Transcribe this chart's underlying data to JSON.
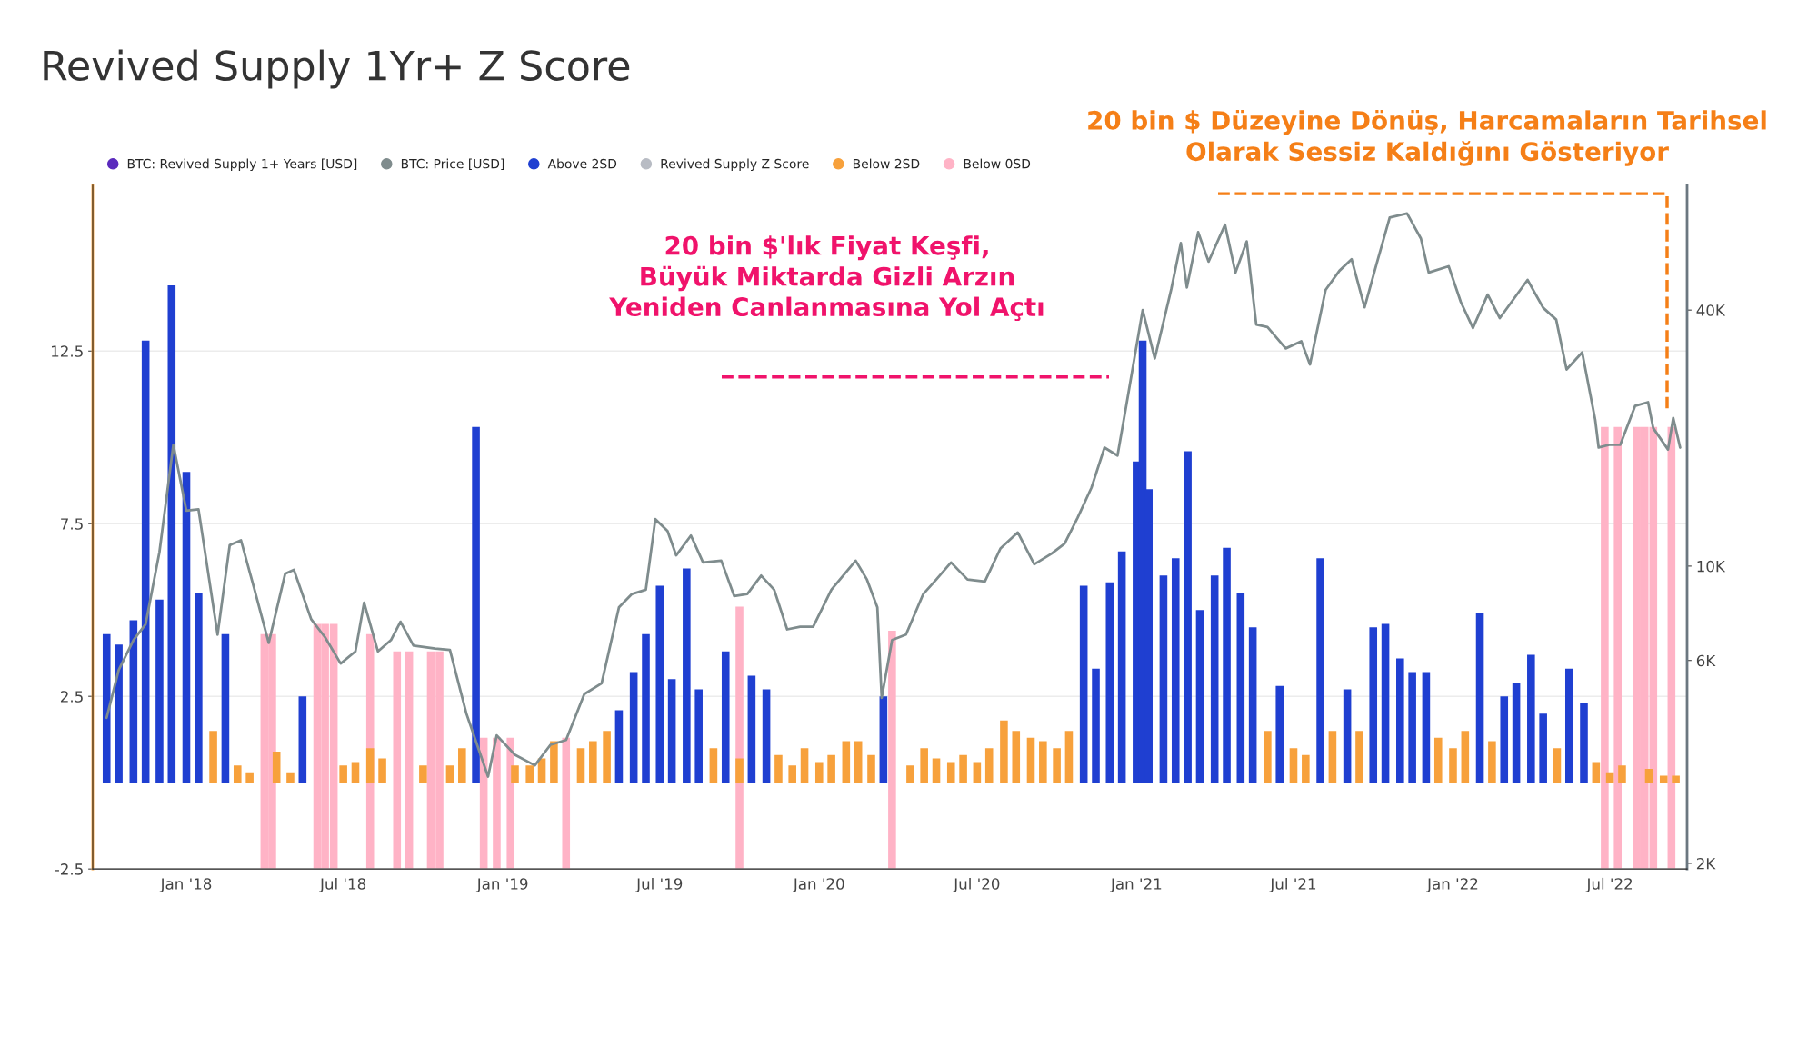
{
  "chart_data": {
    "type": "bar",
    "title": "Revived Supply 1Yr+ Z Score",
    "xlim": [
      "2017-09-15",
      "2022-09-28"
    ],
    "xticks": [
      {
        "value": "2018-01-01",
        "label": "Jan '18"
      },
      {
        "value": "2018-07-01",
        "label": "Jul '18"
      },
      {
        "value": "2019-01-01",
        "label": "Jan '19"
      },
      {
        "value": "2019-07-01",
        "label": "Jul '19"
      },
      {
        "value": "2020-01-01",
        "label": "Jan '20"
      },
      {
        "value": "2020-07-01",
        "label": "Jul '20"
      },
      {
        "value": "2021-01-01",
        "label": "Jan '21"
      },
      {
        "value": "2021-07-01",
        "label": "Jul '21"
      },
      {
        "value": "2022-01-01",
        "label": "Jan '22"
      },
      {
        "value": "2022-07-01",
        "label": "Jul '22"
      }
    ],
    "ylim": [
      -2.5,
      17.3
    ],
    "yticks": [
      -2.5,
      2.5,
      7.5,
      12.5
    ],
    "y2lim": [
      1940,
      78600
    ],
    "y2ticks": [
      {
        "value": 2000,
        "label": "2K"
      },
      {
        "value": 6000,
        "label": "6K"
      },
      {
        "value": 10000,
        "label": "10K"
      },
      {
        "value": 40000,
        "label": "40K"
      }
    ],
    "log": "y2",
    "grid": "y",
    "legend": "top left",
    "series": [
      {
        "name": "BTC: Revived Supply 1+ Years [USD]",
        "color": "#5b2bbd",
        "type": "line"
      },
      {
        "name": "BTC: Price [USD]",
        "color": "#7f8c8d",
        "type": "line",
        "axis": "y2",
        "x": [
          "2017-10-01",
          "2017-10-15",
          "2017-11-01",
          "2017-11-15",
          "2017-12-01",
          "2017-12-17",
          "2018-01-01",
          "2018-01-15",
          "2018-02-06",
          "2018-02-20",
          "2018-03-05",
          "2018-03-20",
          "2018-04-06",
          "2018-04-25",
          "2018-05-05",
          "2018-05-25",
          "2018-06-10",
          "2018-06-28",
          "2018-07-15",
          "2018-07-25",
          "2018-08-10",
          "2018-08-25",
          "2018-09-05",
          "2018-09-20",
          "2018-10-15",
          "2018-11-01",
          "2018-11-20",
          "2018-12-15",
          "2018-12-25",
          "2019-01-15",
          "2019-02-07",
          "2019-02-25",
          "2019-03-15",
          "2019-04-05",
          "2019-04-25",
          "2019-05-15",
          "2019-05-30",
          "2019-06-15",
          "2019-06-26",
          "2019-07-10",
          "2019-07-20",
          "2019-08-06",
          "2019-08-20",
          "2019-09-10",
          "2019-09-25",
          "2019-10-10",
          "2019-10-26",
          "2019-11-10",
          "2019-11-25",
          "2019-12-10",
          "2019-12-25",
          "2020-01-15",
          "2020-02-12",
          "2020-02-25",
          "2020-03-08",
          "2020-03-13",
          "2020-03-25",
          "2020-04-10",
          "2020-04-30",
          "2020-05-15",
          "2020-06-01",
          "2020-06-20",
          "2020-07-10",
          "2020-07-28",
          "2020-08-17",
          "2020-09-05",
          "2020-09-25",
          "2020-10-10",
          "2020-10-25",
          "2020-11-10",
          "2020-11-25",
          "2020-12-10",
          "2020-12-20",
          "2021-01-08",
          "2021-01-22",
          "2021-02-10",
          "2021-02-21",
          "2021-02-28",
          "2021-03-13",
          "2021-03-25",
          "2021-04-13",
          "2021-04-25",
          "2021-05-08",
          "2021-05-19",
          "2021-06-01",
          "2021-06-22",
          "2021-07-10",
          "2021-07-20",
          "2021-08-07",
          "2021-08-23",
          "2021-09-06",
          "2021-09-21",
          "2021-10-05",
          "2021-10-20",
          "2021-11-09",
          "2021-11-25",
          "2021-12-04",
          "2021-12-27",
          "2022-01-10",
          "2022-01-24",
          "2022-02-10",
          "2022-02-24",
          "2022-03-28",
          "2022-04-15",
          "2022-04-30",
          "2022-05-12",
          "2022-05-30",
          "2022-06-14",
          "2022-06-18",
          "2022-07-01",
          "2022-07-13",
          "2022-07-30",
          "2022-08-14",
          "2022-08-20",
          "2022-09-06",
          "2022-09-12",
          "2022-09-20"
        ],
        "values": [
          4400,
          5700,
          6700,
          7300,
          10800,
          19300,
          13500,
          13600,
          6900,
          11200,
          11500,
          8900,
          6600,
          9600,
          9800,
          7500,
          6800,
          5900,
          6300,
          8200,
          6300,
          6700,
          7400,
          6500,
          6400,
          6350,
          4500,
          3200,
          4000,
          3600,
          3400,
          3800,
          3900,
          5000,
          5300,
          8000,
          8600,
          8800,
          12900,
          12100,
          10600,
          11800,
          10200,
          10300,
          8500,
          8600,
          9500,
          8800,
          7100,
          7200,
          7200,
          8800,
          10300,
          9300,
          8000,
          4900,
          6700,
          6900,
          8600,
          9300,
          10200,
          9300,
          9200,
          11000,
          12000,
          10100,
          10700,
          11300,
          13000,
          15300,
          19000,
          18200,
          23800,
          40000,
          30800,
          44800,
          57500,
          45200,
          61000,
          52000,
          63500,
          49000,
          58000,
          37000,
          36500,
          32500,
          33800,
          29800,
          44600,
          49500,
          52700,
          40600,
          51500,
          66000,
          67500,
          58900,
          49000,
          50700,
          41800,
          36300,
          43500,
          38300,
          47100,
          40500,
          38000,
          29000,
          31800,
          22100,
          19000,
          19300,
          19300,
          23800,
          24300,
          21100,
          18800,
          22300,
          19000
        ]
      },
      {
        "name": "Above 2SD",
        "color": "#1f3fd1",
        "x": [
          "2017-10-01",
          "2017-10-15",
          "2017-11-01",
          "2017-11-15",
          "2017-12-01",
          "2017-12-15",
          "2018-01-01",
          "2018-01-15",
          "2018-02-15",
          "2018-05-15",
          "2018-12-01",
          "2019-05-15",
          "2019-06-01",
          "2019-06-15",
          "2019-07-01",
          "2019-07-15",
          "2019-08-01",
          "2019-08-15",
          "2019-09-15",
          "2019-10-15",
          "2019-11-01",
          "2020-03-15",
          "2020-11-01",
          "2020-11-15",
          "2020-12-01",
          "2020-12-15",
          "2021-01-01",
          "2021-01-08",
          "2021-01-15",
          "2021-02-01",
          "2021-02-15",
          "2021-03-01",
          "2021-03-15",
          "2021-04-01",
          "2021-04-15",
          "2021-05-01",
          "2021-05-15",
          "2021-06-15",
          "2021-08-01",
          "2021-09-01",
          "2021-10-01",
          "2021-10-15",
          "2021-11-01",
          "2021-11-15",
          "2021-12-01",
          "2022-02-01",
          "2022-03-01",
          "2022-03-15",
          "2022-04-01",
          "2022-04-15",
          "2022-05-15",
          "2022-06-01"
        ],
        "values": [
          4.3,
          4.0,
          4.7,
          12.8,
          5.3,
          14.4,
          9.0,
          5.5,
          4.3,
          2.5,
          10.3,
          2.1,
          3.2,
          4.3,
          5.7,
          3.0,
          6.2,
          2.7,
          3.8,
          3.1,
          2.7,
          2.5,
          5.7,
          3.3,
          5.8,
          6.7,
          9.3,
          12.8,
          8.5,
          6.0,
          6.5,
          9.6,
          5.0,
          6.0,
          6.8,
          5.5,
          4.5,
          2.8,
          6.5,
          2.7,
          4.5,
          4.6,
          3.6,
          3.2,
          3.2,
          4.9,
          2.5,
          2.9,
          3.7,
          2.0,
          3.3,
          2.3
        ]
      },
      {
        "name": "Revived Supply Z Score",
        "color": "#b8bcc4",
        "type": "line"
      },
      {
        "name": "Below 2SD",
        "color": "#f7a13c",
        "x": [
          "2018-02-01",
          "2018-03-01",
          "2018-03-15",
          "2018-04-15",
          "2018-05-01",
          "2018-07-01",
          "2018-07-15",
          "2018-08-01",
          "2018-08-15",
          "2018-10-01",
          "2018-11-01",
          "2018-11-15",
          "2019-01-15",
          "2019-02-01",
          "2019-02-15",
          "2019-03-01",
          "2019-04-01",
          "2019-04-15",
          "2019-05-01",
          "2019-09-01",
          "2019-10-01",
          "2019-11-15",
          "2019-12-01",
          "2019-12-15",
          "2020-01-01",
          "2020-01-15",
          "2020-02-01",
          "2020-02-15",
          "2020-03-01",
          "2020-04-15",
          "2020-05-01",
          "2020-05-15",
          "2020-06-01",
          "2020-06-15",
          "2020-07-01",
          "2020-07-15",
          "2020-08-01",
          "2020-08-15",
          "2020-09-01",
          "2020-09-15",
          "2020-10-01",
          "2020-10-15",
          "2021-06-01",
          "2021-07-01",
          "2021-07-15",
          "2021-08-15",
          "2021-09-15",
          "2021-12-15",
          "2022-01-01",
          "2022-01-15",
          "2022-02-15",
          "2022-05-01",
          "2022-06-15",
          "2022-07-01",
          "2022-07-15",
          "2022-08-15",
          "2022-09-01",
          "2022-09-15"
        ],
        "values": [
          1.5,
          0.5,
          0.3,
          0.9,
          0.3,
          0.5,
          0.6,
          1.0,
          0.7,
          0.5,
          0.5,
          1.0,
          0.5,
          0.5,
          0.7,
          1.2,
          1.0,
          1.2,
          1.5,
          1.0,
          0.7,
          0.8,
          0.5,
          1.0,
          0.6,
          0.8,
          1.2,
          1.2,
          0.8,
          0.5,
          1.0,
          0.7,
          0.6,
          0.8,
          0.6,
          1.0,
          1.8,
          1.5,
          1.3,
          1.2,
          1.0,
          1.5,
          1.5,
          1.0,
          0.8,
          1.5,
          1.5,
          1.3,
          1.0,
          1.5,
          1.2,
          1.0,
          0.6,
          0.3,
          0.5,
          0.4,
          0.2,
          0.2
        ]
      },
      {
        "name": "Below 0SD",
        "color": "#ffb3c6",
        "x": [
          "2018-04-01",
          "2018-04-10",
          "2018-06-01",
          "2018-06-10",
          "2018-06-20",
          "2018-08-01",
          "2018-09-01",
          "2018-09-15",
          "2018-10-10",
          "2018-10-20",
          "2018-12-10",
          "2018-12-25",
          "2019-01-10",
          "2019-03-15",
          "2019-10-01",
          "2020-03-25",
          "2022-06-25",
          "2022-07-10",
          "2022-08-01",
          "2022-08-10",
          "2022-08-20",
          "2022-09-10"
        ],
        "base": [
          -2.5,
          -2.5,
          -2.5,
          -2.5,
          -2.5,
          -2.5,
          -2.5,
          -2.5,
          -2.5,
          -2.5,
          -2.5,
          -2.5,
          -2.5,
          -2.5,
          -2.5,
          -2.5,
          -2.5,
          -2.5,
          -2.5,
          -2.5,
          -2.5,
          -2.5
        ],
        "values": [
          6.8,
          6.8,
          7.1,
          7.1,
          7.1,
          6.8,
          6.3,
          6.3,
          6.3,
          6.3,
          3.8,
          3.8,
          3.8,
          3.8,
          7.6,
          6.9,
          12.8,
          12.8,
          12.8,
          12.8,
          12.8,
          12.8
        ]
      }
    ],
    "annotations": [
      "20 bin $'lık Fiyat Keşfi,\nBüyük Miktarda Gizli Arzın\nYeniden Canlanmasına Yol Açtı",
      "20 bin $ Düzeyine Dönüş, Harcamaların Tarihsel\nOlarak Sessiz Kaldığını Gösteriyor"
    ]
  }
}
